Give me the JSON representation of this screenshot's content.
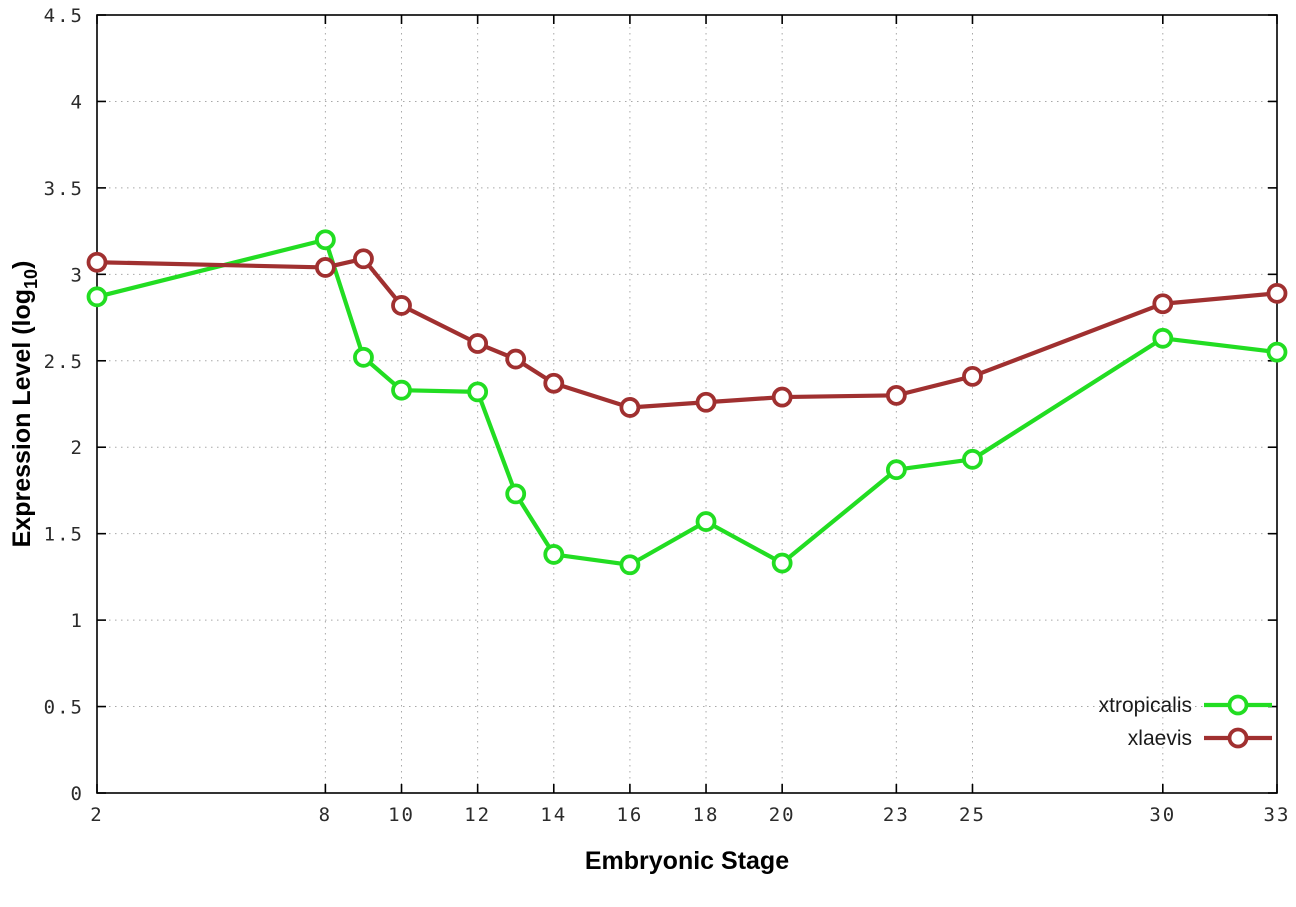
{
  "chart_data": {
    "type": "line",
    "title": "",
    "xlabel": "Embryonic Stage",
    "ylabel": "Expression Level (log10)",
    "ylabel_parts": {
      "main": "Expression Level (log",
      "sub": "10",
      "end": ")"
    },
    "xlim": [
      2,
      33
    ],
    "ylim": [
      0,
      4.5
    ],
    "x_ticks": [
      2,
      8,
      10,
      12,
      14,
      16,
      18,
      20,
      23,
      25,
      30,
      33
    ],
    "y_ticks": [
      0,
      0.5,
      1,
      1.5,
      2,
      2.5,
      3,
      3.5,
      4,
      4.5
    ],
    "grid": true,
    "legend_position": "bottom-right",
    "x": [
      2,
      8,
      9,
      10,
      12,
      13,
      14,
      16,
      18,
      20,
      23,
      25,
      30,
      33
    ],
    "series": [
      {
        "name": "xtropicalis",
        "color": "#22dd22",
        "values": [
          2.87,
          3.2,
          2.52,
          2.33,
          2.32,
          1.73,
          1.38,
          1.32,
          1.57,
          1.33,
          1.87,
          1.93,
          2.63,
          2.55
        ]
      },
      {
        "name": "xlaevis",
        "color": "#a03030",
        "values": [
          3.07,
          3.04,
          3.09,
          2.82,
          2.6,
          2.51,
          2.37,
          2.23,
          2.26,
          2.29,
          2.3,
          2.41,
          2.83,
          2.89
        ]
      }
    ]
  }
}
